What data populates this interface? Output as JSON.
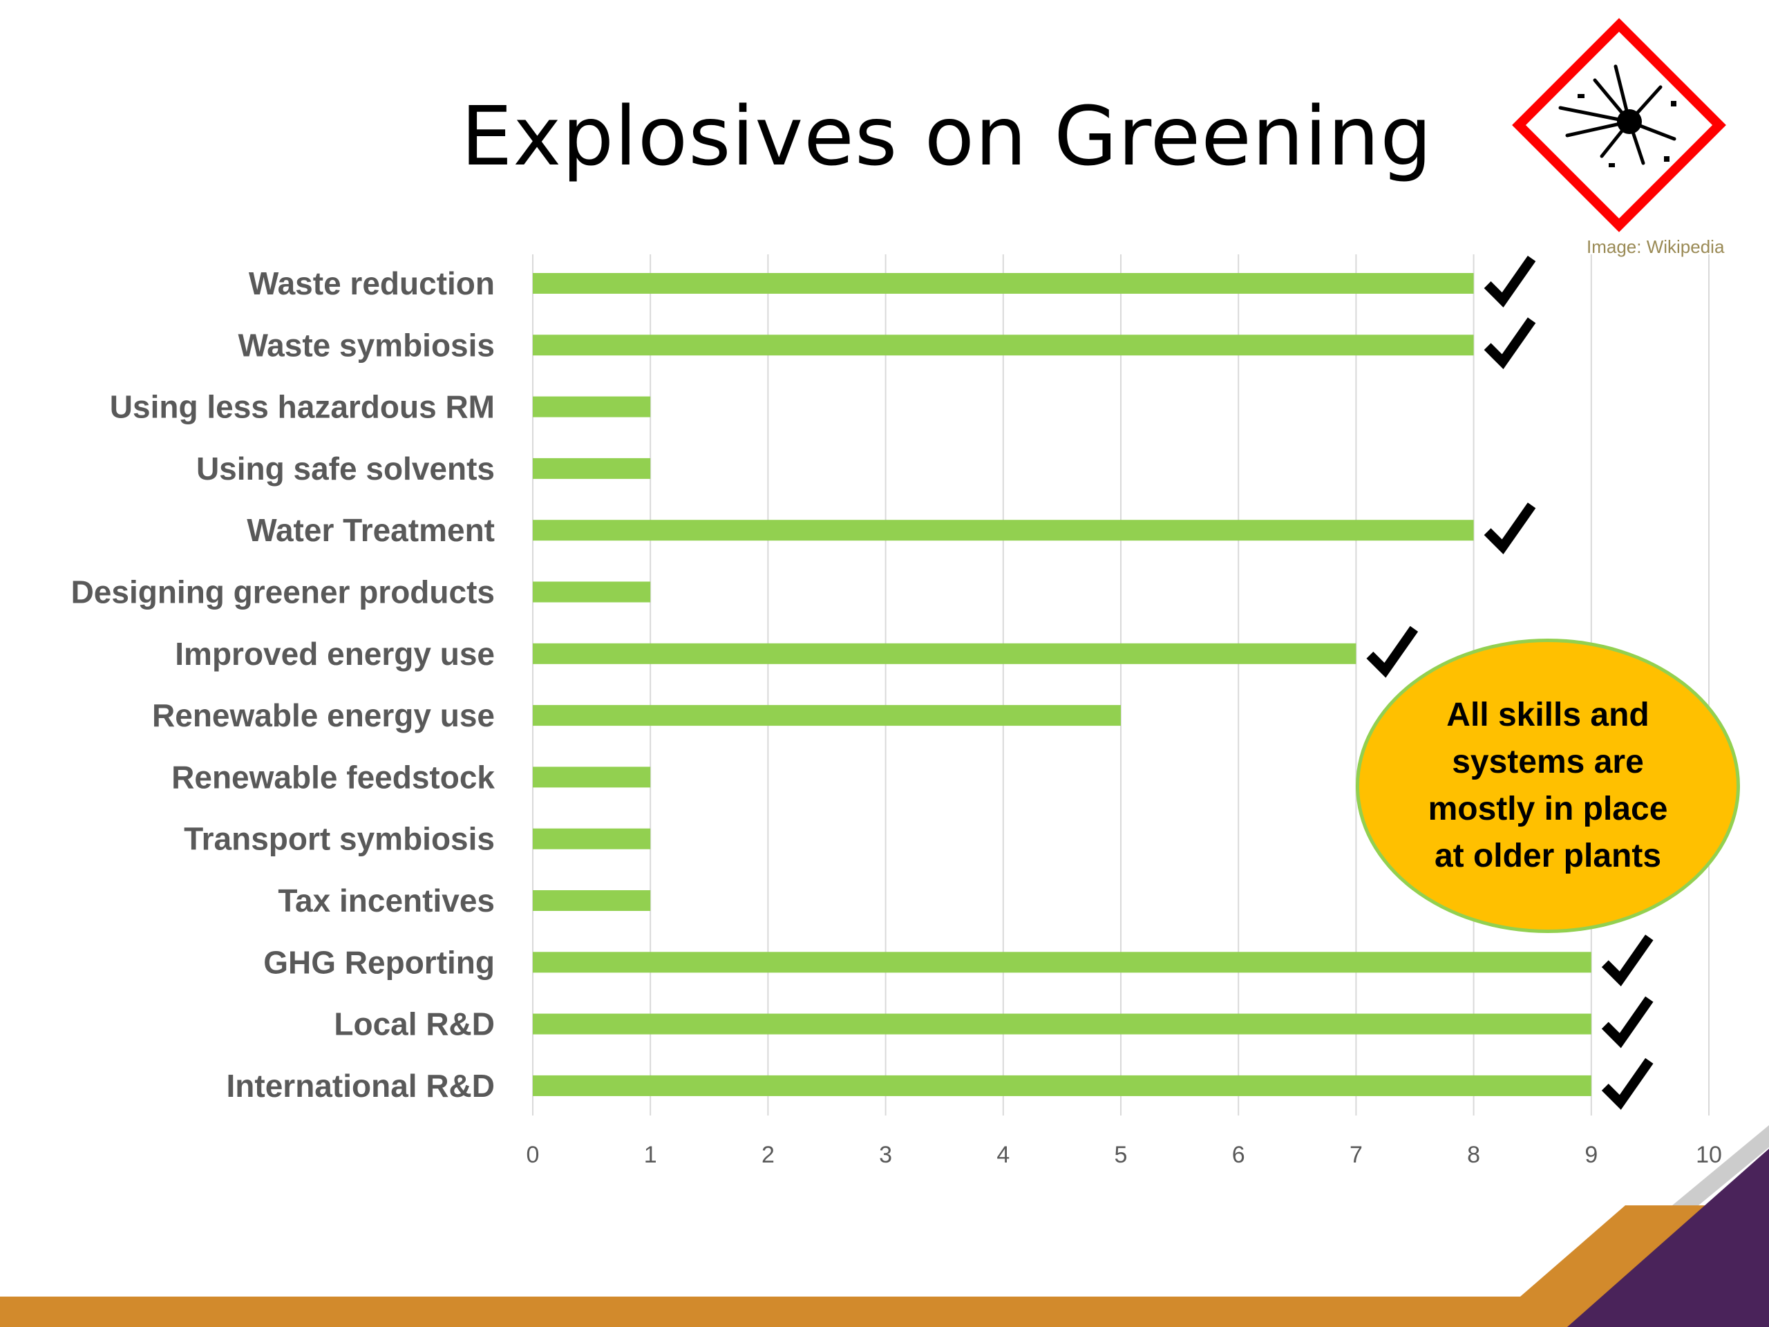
{
  "title": "Explosives on Greening",
  "credit": "Image: Wikipedia",
  "callout": "All skills and systems are mostly in place at older plants",
  "icons": {
    "hazard": "explosive-hazard-pictogram",
    "check": "checkmark-icon"
  },
  "colors": {
    "bar": "#92d050",
    "callout_fill": "#ffc000",
    "callout_border": "#92d050",
    "hazard_border": "#ff0000",
    "footer_orange": "#d28a2c",
    "footer_purple": "#4a235a",
    "label_text": "#595959",
    "tick_text": "#595959",
    "grid": "#d9d9d9"
  },
  "chart_data": {
    "type": "bar",
    "orientation": "horizontal",
    "categories": [
      "Waste reduction",
      "Waste symbiosis",
      "Using less hazardous RM",
      "Using safe solvents",
      "Water Treatment",
      "Designing greener products",
      "Improved energy use",
      "Renewable energy use",
      "Renewable feedstock",
      "Transport symbiosis",
      "Tax incentives",
      "GHG Reporting",
      "Local R&D",
      "International R&D"
    ],
    "values": [
      8,
      8,
      1,
      1,
      8,
      1,
      7,
      5,
      1,
      1,
      1,
      9,
      9,
      9
    ],
    "checked": [
      true,
      true,
      false,
      false,
      true,
      false,
      true,
      false,
      false,
      false,
      false,
      true,
      true,
      true
    ],
    "xlim": [
      0,
      10
    ],
    "xticks": [
      0,
      1,
      2,
      3,
      4,
      5,
      6,
      7,
      8,
      9,
      10
    ],
    "grid": "vertical",
    "legend": "none"
  }
}
